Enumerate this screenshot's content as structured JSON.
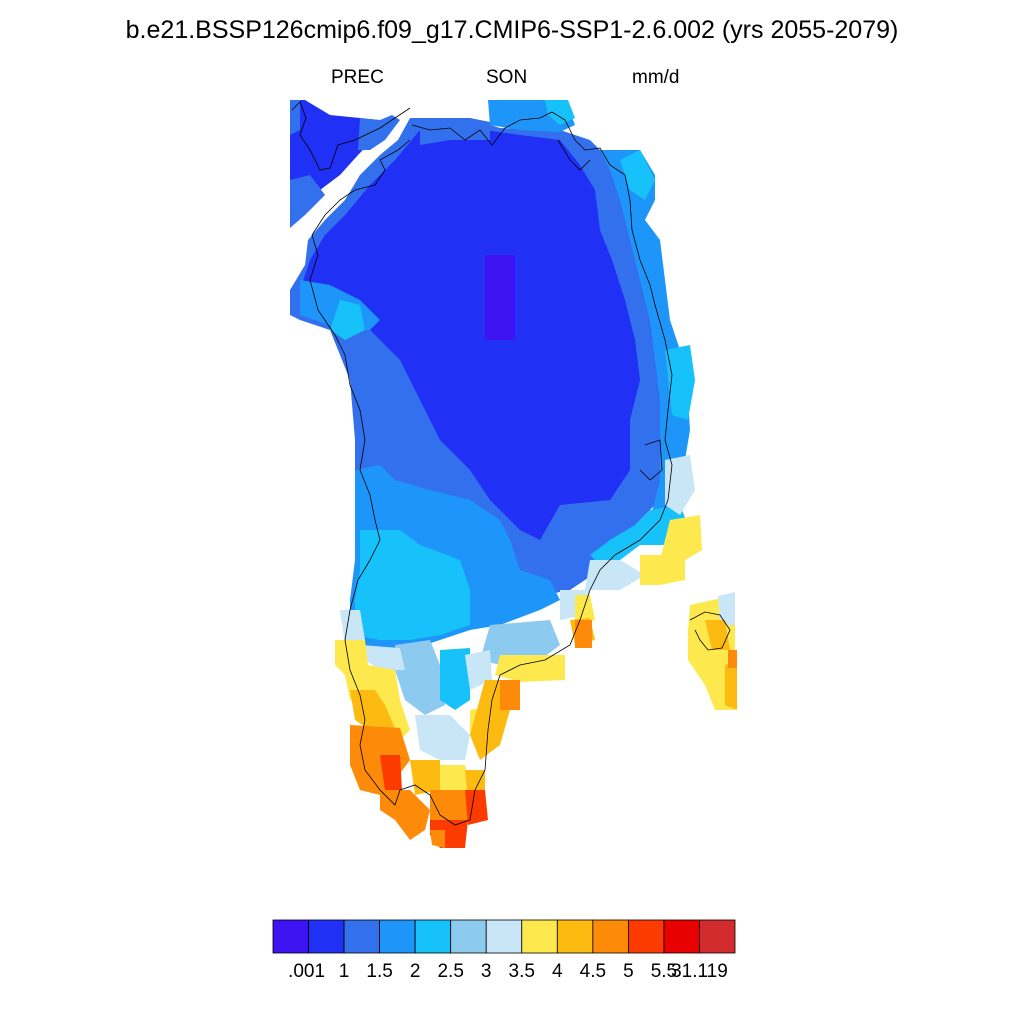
{
  "header": {
    "title": "b.e21.BSSP126cmip6.f09_g17.CMIP6-SSP1-2.6.002 (yrs 2055-2079)",
    "variable": "PREC",
    "season": "SON",
    "units": "mm/d"
  },
  "colorbar": {
    "colors": [
      "#3d13f2",
      "#2030f5",
      "#3370ed",
      "#1e96f9",
      "#17c2fb",
      "#8ccaf0",
      "#c9e6f7",
      "#fde84e",
      "#fdbb12",
      "#fd8a08",
      "#fc3b00",
      "#e90000",
      "#d22b2d"
    ],
    "labels": [
      ".001",
      "1",
      "1.5",
      "2",
      "2.5",
      "3",
      "3.5",
      "4",
      "4.5",
      "5",
      "5.5",
      "31.119"
    ]
  }
}
